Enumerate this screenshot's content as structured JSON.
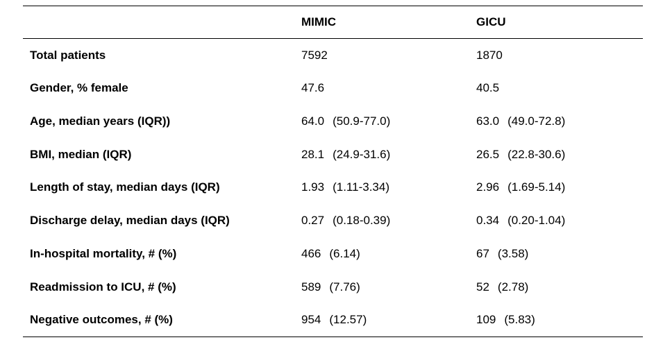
{
  "table": {
    "columns": [
      "",
      "MIMIC",
      "GICU"
    ],
    "rows": [
      {
        "label": "Total patients",
        "mimic_value": "7592",
        "mimic_range": "",
        "gicu_value": "1870",
        "gicu_range": ""
      },
      {
        "label": "Gender, % female",
        "mimic_value": "47.6",
        "mimic_range": "",
        "gicu_value": "40.5",
        "gicu_range": ""
      },
      {
        "label": "Age, median years (IQR))",
        "mimic_value": "64.0",
        "mimic_range": "(50.9-77.0)",
        "gicu_value": "63.0",
        "gicu_range": "(49.0-72.8)"
      },
      {
        "label": "BMI, median (IQR)",
        "mimic_value": "28.1",
        "mimic_range": "(24.9-31.6)",
        "gicu_value": "26.5",
        "gicu_range": "(22.8-30.6)"
      },
      {
        "label": "Length of stay, median days (IQR)",
        "mimic_value": "1.93",
        "mimic_range": "(1.11-3.34)",
        "gicu_value": "2.96",
        "gicu_range": "(1.69-5.14)"
      },
      {
        "label": "Discharge delay, median days (IQR)",
        "mimic_value": "0.27",
        "mimic_range": "(0.18-0.39)",
        "gicu_value": "0.34",
        "gicu_range": "(0.20-1.04)"
      },
      {
        "label": "In-hospital mortality, # (%)",
        "mimic_value": "466",
        "mimic_range": "(6.14)",
        "gicu_value": "67",
        "gicu_range": "(3.58)"
      },
      {
        "label": "Readmission to ICU, # (%)",
        "mimic_value": "589",
        "mimic_range": "(7.76)",
        "gicu_value": "52",
        "gicu_range": "(2.78)"
      },
      {
        "label": "Negative outcomes, # (%)",
        "mimic_value": "954",
        "mimic_range": "(12.57)",
        "gicu_value": "109",
        "gicu_range": "(5.83)"
      }
    ]
  }
}
